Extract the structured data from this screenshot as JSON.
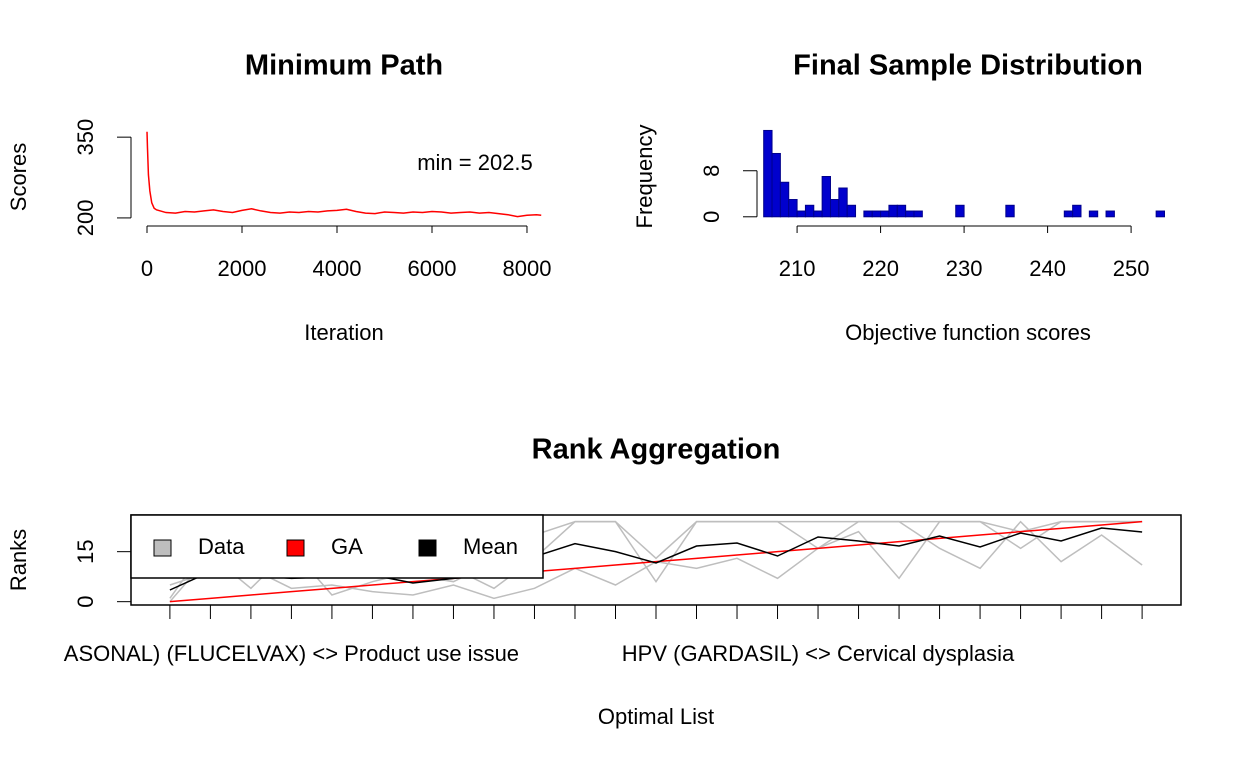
{
  "chart_data": [
    {
      "type": "line",
      "title": "Minimum Path",
      "x_label": "Iteration",
      "y_label": "Scores",
      "annotation": "min = 202.5",
      "color": "#ff0000",
      "x": [
        0,
        10,
        30,
        60,
        100,
        150,
        200,
        400,
        600,
        800,
        1000,
        1200,
        1400,
        1600,
        1800,
        2000,
        2200,
        2400,
        2600,
        2800,
        3000,
        3200,
        3400,
        3600,
        3800,
        4000,
        4200,
        4400,
        4600,
        4800,
        5000,
        5200,
        5400,
        5600,
        5800,
        6000,
        6200,
        6400,
        6600,
        6800,
        7000,
        7200,
        7400,
        7600,
        7800,
        8000,
        8200,
        8300
      ],
      "values": [
        360,
        330,
        280,
        250,
        228,
        218,
        215,
        210,
        209,
        212,
        211,
        213,
        215,
        212,
        210,
        214,
        217,
        213,
        210,
        209,
        211,
        210,
        212,
        211,
        213,
        214,
        216,
        212,
        209,
        208,
        211,
        210,
        209,
        211,
        210,
        212,
        211,
        209,
        210,
        211,
        209,
        210,
        208,
        206,
        202.5,
        205,
        206,
        205
      ],
      "xlim": [
        -337,
        8632
      ],
      "ylim": [
        185,
        367
      ],
      "xticks": [
        0,
        2000,
        4000,
        6000,
        8000
      ],
      "yticks": [
        200,
        350
      ]
    },
    {
      "type": "histogram",
      "title": "Final Sample Distribution",
      "x_label": "Objective function scores",
      "y_label": "Frequency",
      "color": "#0000cd",
      "edge_color": "#00008b",
      "bins": [
        206,
        207,
        208,
        209,
        210,
        211,
        212,
        213,
        214,
        215,
        216,
        217,
        218,
        219,
        220,
        221,
        222,
        223,
        224,
        225,
        226,
        227,
        228,
        229,
        230,
        231,
        232,
        233,
        234,
        235,
        236,
        237,
        238,
        239,
        240,
        241,
        242,
        243,
        244,
        245,
        246,
        247,
        248,
        249,
        250,
        251,
        252,
        253,
        254
      ],
      "values": [
        15,
        11,
        6,
        3,
        1,
        2,
        1,
        7,
        3,
        5,
        2,
        0,
        1,
        1,
        1,
        2,
        2,
        1,
        1,
        0,
        0,
        0,
        0,
        2,
        0,
        0,
        0,
        0,
        0,
        2,
        0,
        0,
        0,
        0,
        0,
        0,
        1,
        2,
        0,
        1,
        0,
        1,
        0,
        0,
        0,
        0,
        0,
        1
      ],
      "xlim": [
        205.2,
        254.3
      ],
      "ylim": [
        -1.6,
        15.6
      ],
      "xticks": [
        210,
        220,
        230,
        240,
        250
      ],
      "yticks": [
        0,
        8
      ]
    },
    {
      "type": "rank-lines",
      "title": "Rank Aggregation",
      "x_label": "Optimal List",
      "y_label": "Ranks",
      "categories": [
        null,
        null,
        null,
        "ASONAL) (FLUCELVAX) <> Product use issue",
        null,
        null,
        null,
        null,
        null,
        null,
        null,
        null,
        null,
        null,
        null,
        null,
        "HPV (GARDASIL) <> Cervical dysplasia",
        null,
        null,
        null,
        null,
        null,
        null,
        null,
        null
      ],
      "series": [
        {
          "name": "Data",
          "color": "#bebebe",
          "lines": [
            [
              0,
              14,
              4,
              16,
              2,
              6,
              9,
              10,
              4,
              13,
              24,
              24,
              6,
              24,
              24,
              24,
              24,
              24,
              24,
              24,
              24,
              21,
              24,
              24,
              24
            ],
            [
              1,
              18,
              10,
              4,
              5,
              3,
              2,
              5,
              1,
              4,
              10,
              5,
              12,
              10,
              13,
              7,
              16,
              24,
              24,
              16,
              10,
              24,
              12,
              20,
              11
            ],
            [
              5,
              9,
              12,
              10,
              10,
              8,
              8,
              6,
              12,
              20,
              24,
              24,
              13,
              24,
              24,
              24,
              16,
              21,
              7,
              24,
              24,
              16,
              24,
              24,
              24
            ]
          ]
        },
        {
          "name": "GA",
          "color": "#ff0000",
          "values": [
            0,
            1,
            2,
            3,
            4,
            5,
            6,
            7,
            8,
            9,
            10,
            11,
            12,
            13,
            14,
            15,
            16,
            17,
            18,
            19,
            20,
            21,
            22,
            23,
            24
          ]
        },
        {
          "name": "Mean",
          "color": "#000000",
          "values": [
            3.5,
            9,
            8,
            7,
            7.5,
            8,
            5.6,
            7,
            8,
            13.5,
            17.4,
            15,
            11.6,
            16.7,
            17.6,
            13.7,
            19.4,
            18.2,
            16.7,
            19.7,
            16.4,
            20.6,
            18.2,
            22.1,
            20.9
          ]
        }
      ],
      "xlim": [
        0.04,
        25.96
      ],
      "ylim": [
        -1,
        26
      ],
      "yticks": [
        0,
        15
      ]
    }
  ]
}
